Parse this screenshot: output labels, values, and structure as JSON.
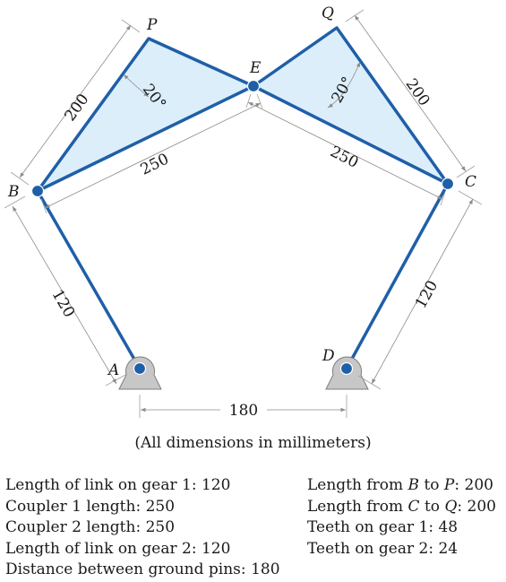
{
  "diagram": {
    "points": {
      "A": "A",
      "B": "B",
      "C": "C",
      "D": "D",
      "E": "E",
      "P": "P",
      "Q": "Q"
    },
    "dimensions": {
      "link_ab": "120",
      "link_cd": "120",
      "bp": "200",
      "cq": "200",
      "be": "250",
      "ce": "250",
      "ground": "180",
      "angle_left": "20°",
      "angle_right": "20°"
    },
    "colors": {
      "link": "#1f5fa8",
      "coupler_fill": "#dceefa",
      "ground": "#c7c7c7"
    }
  },
  "caption": "(All dimensions in millimeters)",
  "specs_left": [
    {
      "label": "Length of link on gear 1",
      "value": "120"
    },
    {
      "label": "Coupler 1 length",
      "value": "250"
    },
    {
      "label": "Coupler 2 length",
      "value": "250"
    },
    {
      "label": "Length of link on gear 2",
      "value": "120"
    },
    {
      "label": "Distance between ground pins",
      "value": "180"
    }
  ],
  "specs_right": [
    {
      "pre": "Length from ",
      "a": "B",
      "mid": " to ",
      "b": "P",
      "value": "200"
    },
    {
      "pre": "Length from ",
      "a": "C",
      "mid": " to ",
      "b": "Q",
      "value": "200"
    },
    {
      "label": "Teeth on gear 1",
      "value": "48"
    },
    {
      "label": "Teeth on gear 2",
      "value": "24"
    }
  ]
}
